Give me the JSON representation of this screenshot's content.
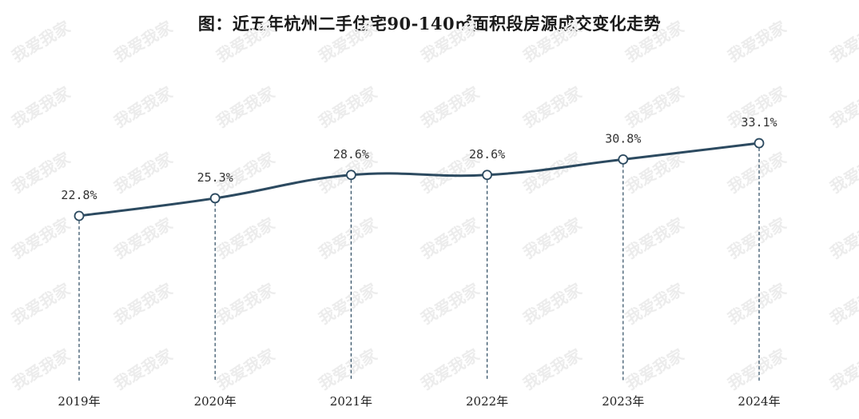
{
  "chart_data": {
    "type": "line",
    "title": "图：近五年杭州二手住宅90-140㎡面积段房源成交变化走势",
    "categories": [
      "2019年",
      "2020年",
      "2021年",
      "2022年",
      "2023年",
      "2024年"
    ],
    "series": [
      {
        "values": [
          22.8,
          25.3,
          28.6,
          28.6,
          30.8,
          33.1
        ],
        "labels": [
          "22.8%",
          "25.3%",
          "28.6%",
          "28.6%",
          "30.8%",
          "33.1%"
        ],
        "color": "#2c4a60"
      }
    ],
    "xlabel": "",
    "ylabel": "",
    "grid": false,
    "drop_lines": true,
    "smooth": true
  },
  "watermark": {
    "text": "我爱我家",
    "color": "#ececec"
  }
}
